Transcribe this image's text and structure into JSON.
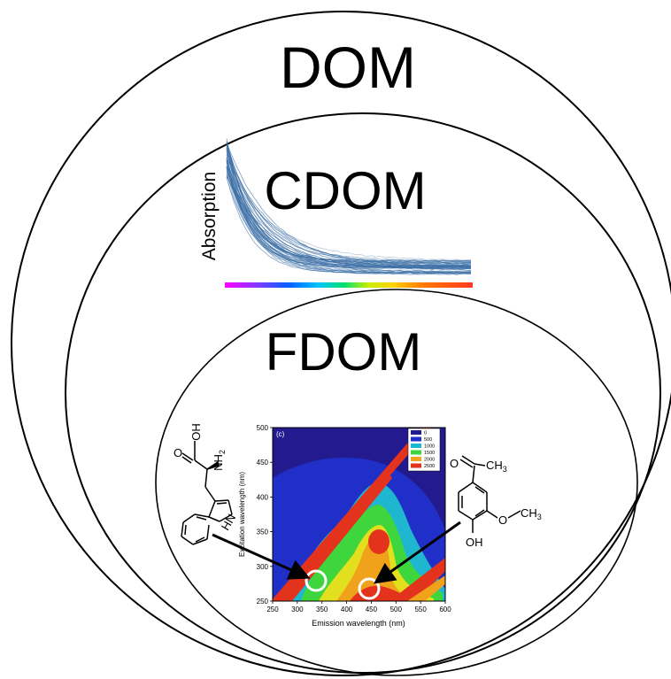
{
  "labels": {
    "outer": "DOM",
    "middle": "CDOM",
    "inner": "FDOM"
  },
  "absorption_panel": {
    "ylabel": "Absorption",
    "curve_color": "#3b6ea5",
    "spectrum_colors": [
      "#ff00ff",
      "#7a3cff",
      "#0060ff",
      "#00c8ff",
      "#00e070",
      "#c8f000",
      "#ffd000",
      "#ff7a00",
      "#ff3a20"
    ]
  },
  "eem": {
    "panel_label": "(c)",
    "xlabel": "Emission wavelength (nm)",
    "ylabel": "Excitation wavelength (nm)",
    "x_ticks": [
      "250",
      "300",
      "350",
      "400",
      "450",
      "500",
      "550",
      "600"
    ],
    "y_ticks": [
      "250",
      "300",
      "350",
      "400",
      "450",
      "500"
    ],
    "legend": [
      {
        "label": "0",
        "color": "#241a8f"
      },
      {
        "label": "500",
        "color": "#1f2fc8"
      },
      {
        "label": "1000",
        "color": "#1eb7cf"
      },
      {
        "label": "1500",
        "color": "#3fd53c"
      },
      {
        "label": "2000",
        "color": "#f1a21b"
      },
      {
        "label": "2500",
        "color": "#e3331c"
      }
    ]
  },
  "molecules": {
    "tryptophan": {
      "o": "O",
      "oh": "OH",
      "nh2": "NH",
      "nh2_sub": "2",
      "hn": "HN"
    },
    "vanillin_like": {
      "o": "O",
      "ch3": "CH",
      "ch3_sub": "3",
      "och3_o": "O",
      "och3_ch": "CH",
      "och3_sub": "3",
      "oh": "OH"
    }
  }
}
